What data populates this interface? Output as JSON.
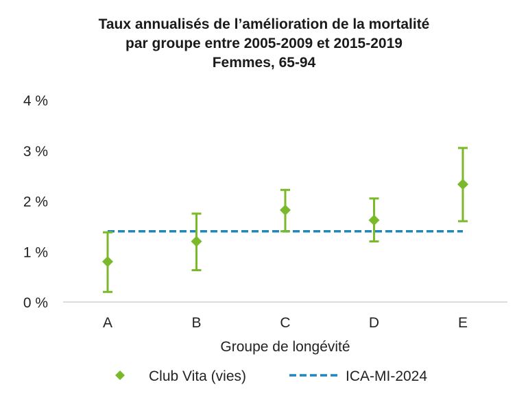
{
  "chart_data": {
    "type": "scatter",
    "title_lines": [
      "Taux annualisés de l’amélioration de la mortalité",
      "par groupe entre 2005-2009 et 2015-2019",
      "Femmes, 65-94"
    ],
    "xlabel": "Groupe de longévité",
    "ylabel": "",
    "categories": [
      "A",
      "B",
      "C",
      "D",
      "E"
    ],
    "ylim": [
      0,
      4
    ],
    "yticks": [
      0,
      1,
      2,
      3,
      4
    ],
    "ytick_labels": [
      "0 %",
      "1 %",
      "2 %",
      "3 %",
      "4 %"
    ],
    "grid": false,
    "legend_position": "bottom",
    "series": [
      {
        "name": "Club Vita (vies)",
        "marker": "diamond",
        "color": "#7ab929",
        "values": [
          0.8,
          1.2,
          1.82,
          1.62,
          2.33
        ],
        "error_low": [
          0.2,
          0.63,
          1.4,
          1.2,
          1.6
        ],
        "error_high": [
          1.38,
          1.75,
          2.22,
          2.05,
          3.05
        ]
      },
      {
        "name": "ICA-MI-2024",
        "style": "dashed-line",
        "color": "#1f88b8",
        "values": [
          1.4,
          1.4,
          1.4,
          1.4,
          1.4
        ]
      }
    ]
  }
}
